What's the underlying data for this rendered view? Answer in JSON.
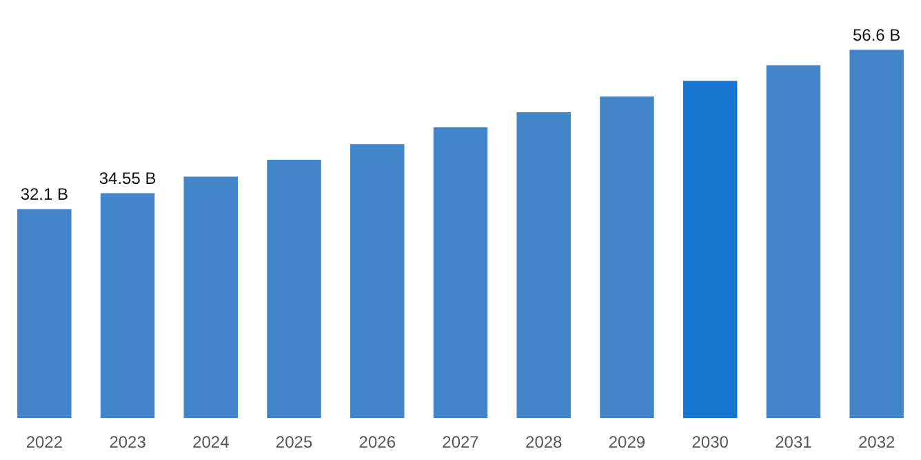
{
  "chart_data": {
    "type": "bar",
    "categories": [
      "2022",
      "2023",
      "2024",
      "2025",
      "2026",
      "2027",
      "2028",
      "2029",
      "2030",
      "2031",
      "2032"
    ],
    "values": [
      32.1,
      34.55,
      37.1,
      39.7,
      42.1,
      44.7,
      47.0,
      49.4,
      51.8,
      54.2,
      56.6
    ],
    "colors": [
      "#4285c8",
      "#4285c8",
      "#4285c8",
      "#4285c8",
      "#4285c8",
      "#4285c8",
      "#4285c8",
      "#4285c8",
      "#1976d2",
      "#4285c8",
      "#4285c8"
    ],
    "value_labels": [
      "32.1 B",
      "34.55 B",
      null,
      null,
      null,
      null,
      null,
      null,
      null,
      null,
      "56.6 B"
    ],
    "grid": false,
    "legend": false,
    "tick_labels": "x"
  }
}
